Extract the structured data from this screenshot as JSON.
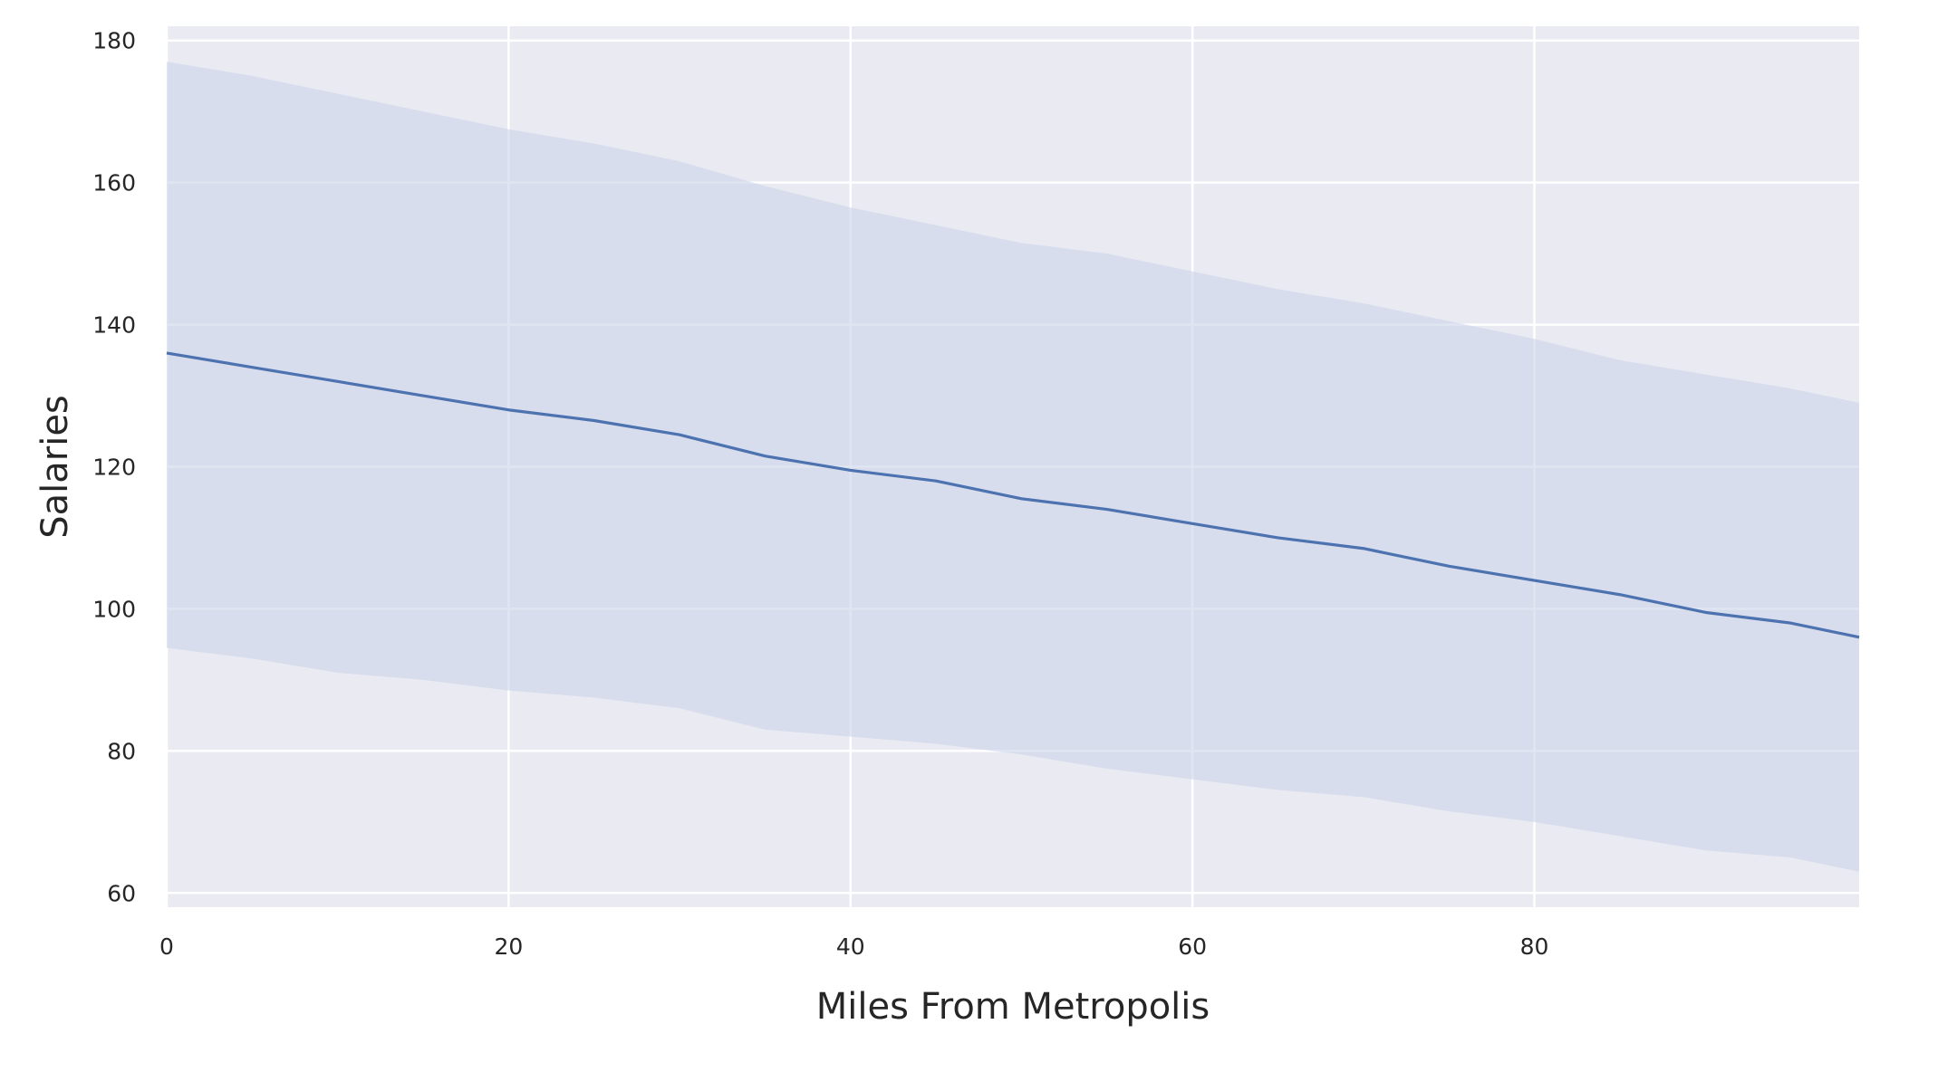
{
  "chart_data": {
    "type": "line",
    "title": "",
    "xlabel": "Miles From Metropolis",
    "ylabel": "Salaries",
    "xlim": [
      0,
      99
    ],
    "ylim": [
      58,
      182
    ],
    "xticks": [
      0,
      20,
      40,
      60,
      80
    ],
    "yticks": [
      60,
      80,
      100,
      120,
      140,
      160,
      180
    ],
    "grid": true,
    "legend": "none",
    "colors": {
      "background": "#eaeaf2",
      "grid": "#ffffff",
      "line": "#4c72b0",
      "band": "#cbd3ea"
    },
    "series": [
      {
        "x": [
          0,
          5,
          10,
          15,
          20,
          25,
          30,
          35,
          40,
          45,
          50,
          55,
          60,
          65,
          70,
          75,
          80,
          85,
          90,
          95,
          99
        ],
        "mean": [
          136,
          134,
          132,
          130,
          128,
          126.5,
          124.5,
          121.5,
          119.5,
          118,
          115.5,
          114,
          112,
          110,
          108.5,
          106,
          104,
          102,
          99.5,
          98,
          96
        ],
        "upper": [
          177,
          175,
          172.5,
          170,
          167.5,
          165.5,
          163,
          159.5,
          156.5,
          154,
          151.5,
          150,
          147.5,
          145,
          143,
          140.5,
          138,
          135,
          133,
          131,
          129
        ],
        "lower": [
          94.5,
          93,
          91,
          90,
          88.5,
          87.5,
          86,
          83,
          82,
          81,
          79.5,
          77.5,
          76,
          74.5,
          73.5,
          71.5,
          70,
          68,
          66,
          65,
          63
        ]
      }
    ]
  }
}
